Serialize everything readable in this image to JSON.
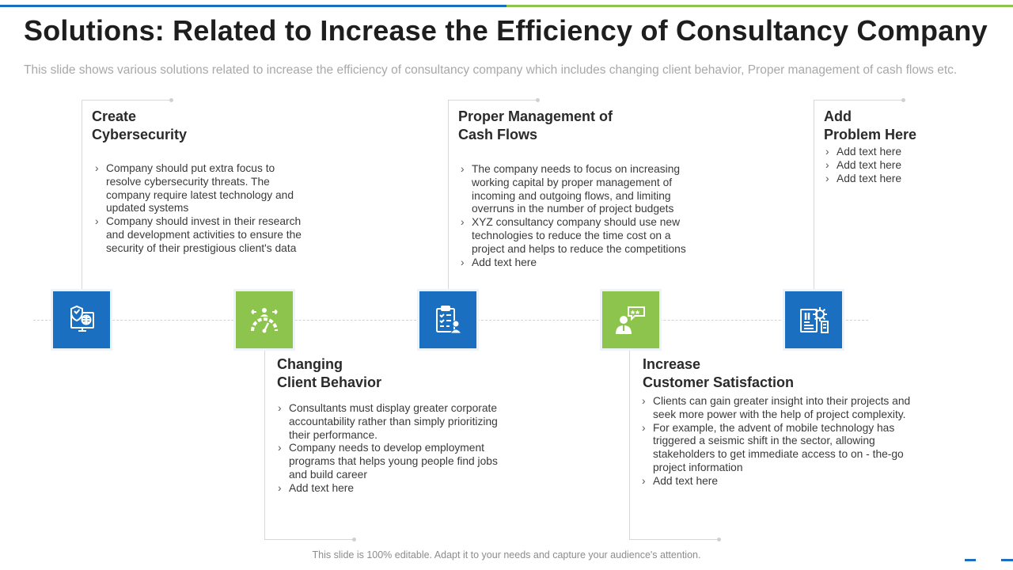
{
  "slide": {
    "title": "Solutions: Related to Increase the Efficiency of Consultancy Company",
    "subtitle": "This slide shows various solutions related to increase the efficiency of consultancy  company which includes changing client behavior, Proper management  of cash flows etc.",
    "footer": "This slide is 100% editable. Adapt it to your needs and capture your audience's attention."
  },
  "colors": {
    "blue": "#1a6fc0",
    "green": "#8cc44e"
  },
  "steps": [
    {
      "icon": "cybersecurity-monitor-icon",
      "title_lines": [
        "Create",
        "Cybersecurity"
      ],
      "bullets": [
        "Company should put extra focus to resolve cybersecurity threats. The company require latest technology and updated systems",
        "Company should invest in their research and development activities to ensure the security of their prestigious client's data"
      ]
    },
    {
      "icon": "client-behavior-gauge-icon",
      "title_lines": [
        "Changing",
        "Client Behavior"
      ],
      "bullets": [
        "Consultants must display greater corporate accountability rather than simply prioritizing their performance.",
        "Company needs to develop employment programs that helps young people find jobs and build career",
        "Add text here"
      ]
    },
    {
      "icon": "clipboard-user-icon",
      "title_lines": [
        "Proper Management of",
        "Cash Flows"
      ],
      "bullets": [
        "The company needs to focus on increasing working capital by proper management of incoming and outgoing flows,  and limiting overruns in the number of project budgets",
        "XYZ  consultancy company should use new technologies to reduce the time cost on a project and helps to reduce the competitions",
        "Add text here"
      ]
    },
    {
      "icon": "customer-rating-icon",
      "title_lines": [
        "Increase",
        "Customer Satisfaction"
      ],
      "bullets": [
        "Clients can gain greater insight into their projects and seek more power with the help of project complexity.",
        "For example,  the advent of mobile technology has triggered a seismic  shift in the sector, allowing stakeholders to get immediate  access to on - the-go project information",
        "Add text here"
      ]
    },
    {
      "icon": "document-gear-icon",
      "title_lines": [
        "Add",
        "Problem Here"
      ],
      "bullets": [
        "Add text here",
        "Add text here",
        "Add text here"
      ]
    }
  ]
}
